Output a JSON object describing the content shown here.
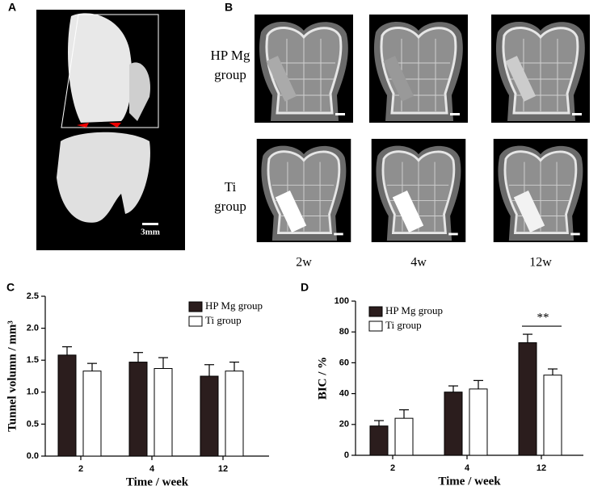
{
  "panels": {
    "a": {
      "label": "A",
      "scale_bar": "3mm"
    },
    "b": {
      "label": "B",
      "rows": [
        [
          "HP Mg",
          "group"
        ],
        [
          "Ti",
          "group"
        ]
      ],
      "columns": [
        "2w",
        "4w",
        "12w"
      ]
    }
  },
  "chart_data": [
    {
      "type": "bar",
      "label": "C",
      "y_label": "Tunnel volumn / mm³",
      "x_label": "Time / week",
      "categories": [
        "2",
        "4",
        "12"
      ],
      "series": [
        {
          "name": "HP Mg group",
          "color": "#2b1d1d",
          "values": [
            1.58,
            1.47,
            1.25
          ],
          "errors": [
            0.13,
            0.15,
            0.18
          ]
        },
        {
          "name": "Ti group",
          "color": "#ffffff",
          "values": [
            1.33,
            1.37,
            1.33
          ],
          "errors": [
            0.12,
            0.17,
            0.14
          ]
        }
      ],
      "ylim": [
        0,
        2.5
      ],
      "yticks": [
        {
          "value": 0,
          "label": "0.0"
        },
        0.5,
        {
          "value": 1,
          "label": "1.0"
        },
        1.5,
        {
          "value": 2,
          "label": "2.0"
        },
        2.5
      ],
      "legend": "upper right"
    },
    {
      "type": "bar",
      "label": "D",
      "y_label": "BIC / %",
      "x_label": "Time / week",
      "categories": [
        "2",
        "4",
        "12"
      ],
      "series": [
        {
          "name": "HP Mg group",
          "color": "#2b1d1d",
          "values": [
            19,
            41,
            73
          ],
          "errors": [
            3.5,
            4,
            5.5
          ]
        },
        {
          "name": "Ti group",
          "color": "#ffffff",
          "values": [
            24,
            43,
            52
          ],
          "errors": [
            5.5,
            5.5,
            4
          ]
        }
      ],
      "ylim": [
        0,
        100
      ],
      "yticks": [
        0,
        20,
        40,
        60,
        80,
        100
      ],
      "legend": "upper left",
      "annotations": [
        {
          "text": "**"
        }
      ]
    }
  ]
}
